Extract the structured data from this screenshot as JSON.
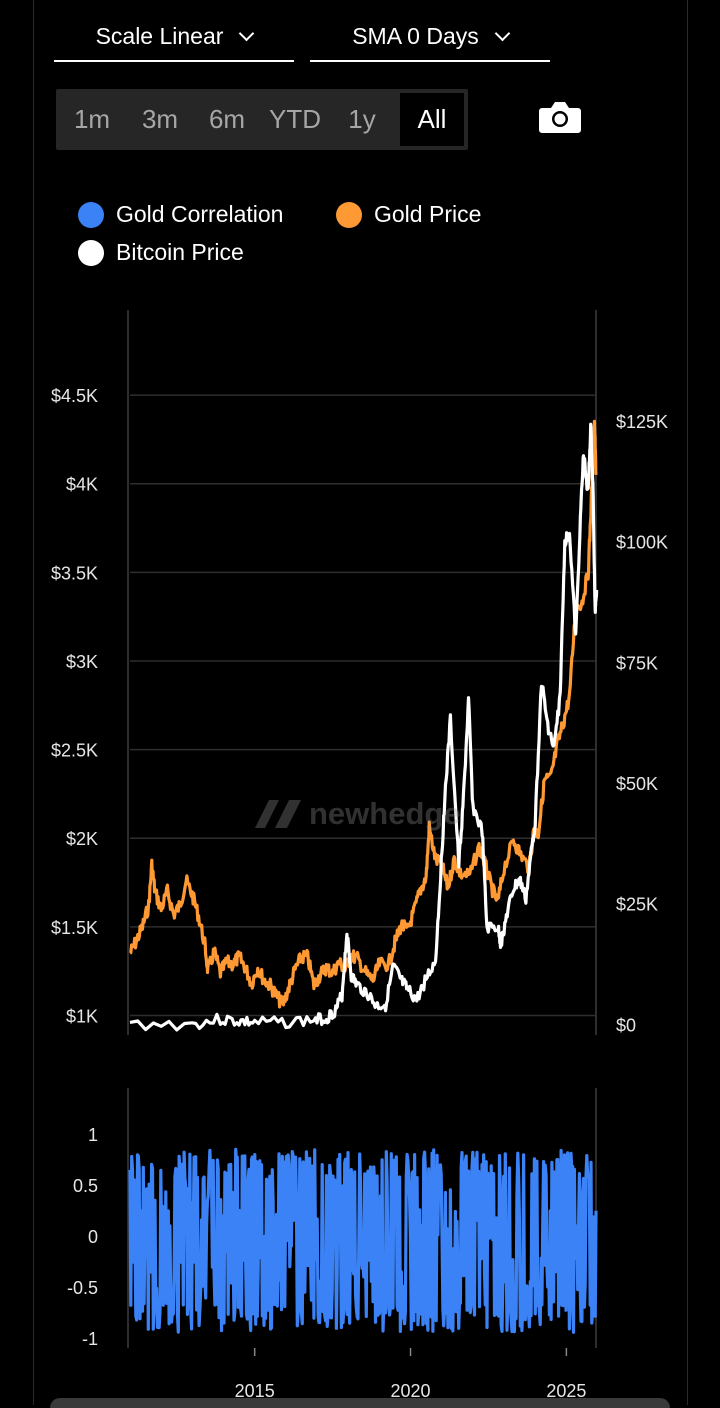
{
  "controls": {
    "scale": "Scale Linear",
    "sma": "SMA 0 Days",
    "ranges": [
      "1m",
      "3m",
      "6m",
      "YTD",
      "1y",
      "All"
    ],
    "active_range": "All"
  },
  "watermark": "newhedge",
  "colors": {
    "gold": "#ff9933",
    "bitcoin": "#ffffff",
    "correlation": "#3b82f6",
    "grid": "#2e2e2e"
  },
  "chart_data": [
    {
      "type": "line",
      "series": [
        {
          "name": "Gold Price",
          "axis": "left",
          "color": "#ff9933",
          "points": [
            [
              2011.0,
              1350
            ],
            [
              2011.2,
              1420
            ],
            [
              2011.4,
              1500
            ],
            [
              2011.6,
              1620
            ],
            [
              2011.7,
              1850
            ],
            [
              2011.8,
              1700
            ],
            [
              2012.0,
              1600
            ],
            [
              2012.2,
              1700
            ],
            [
              2012.4,
              1570
            ],
            [
              2012.6,
              1620
            ],
            [
              2012.8,
              1760
            ],
            [
              2013.0,
              1680
            ],
            [
              2013.2,
              1560
            ],
            [
              2013.4,
              1400
            ],
            [
              2013.5,
              1250
            ],
            [
              2013.7,
              1360
            ],
            [
              2013.9,
              1240
            ],
            [
              2014.1,
              1300
            ],
            [
              2014.3,
              1290
            ],
            [
              2014.5,
              1330
            ],
            [
              2014.7,
              1270
            ],
            [
              2014.9,
              1180
            ],
            [
              2015.1,
              1270
            ],
            [
              2015.3,
              1200
            ],
            [
              2015.5,
              1170
            ],
            [
              2015.7,
              1110
            ],
            [
              2015.9,
              1060
            ],
            [
              2016.1,
              1160
            ],
            [
              2016.3,
              1260
            ],
            [
              2016.5,
              1330
            ],
            [
              2016.7,
              1330
            ],
            [
              2016.9,
              1170
            ],
            [
              2017.1,
              1230
            ],
            [
              2017.3,
              1270
            ],
            [
              2017.5,
              1240
            ],
            [
              2017.7,
              1300
            ],
            [
              2017.9,
              1260
            ],
            [
              2018.1,
              1340
            ],
            [
              2018.3,
              1320
            ],
            [
              2018.6,
              1230
            ],
            [
              2018.8,
              1200
            ],
            [
              2019.0,
              1290
            ],
            [
              2019.3,
              1290
            ],
            [
              2019.5,
              1410
            ],
            [
              2019.7,
              1510
            ],
            [
              2019.9,
              1480
            ],
            [
              2020.1,
              1580
            ],
            [
              2020.3,
              1700
            ],
            [
              2020.5,
              1780
            ],
            [
              2020.6,
              2060
            ],
            [
              2020.8,
              1880
            ],
            [
              2021.0,
              1850
            ],
            [
              2021.2,
              1720
            ],
            [
              2021.4,
              1880
            ],
            [
              2021.6,
              1800
            ],
            [
              2021.9,
              1790
            ],
            [
              2022.2,
              1950
            ],
            [
              2022.4,
              1850
            ],
            [
              2022.6,
              1720
            ],
            [
              2022.8,
              1640
            ],
            [
              2023.0,
              1830
            ],
            [
              2023.3,
              1990
            ],
            [
              2023.5,
              1920
            ],
            [
              2023.8,
              1830
            ],
            [
              2023.95,
              2040
            ],
            [
              2024.1,
              2030
            ],
            [
              2024.3,
              2330
            ],
            [
              2024.5,
              2340
            ],
            [
              2024.7,
              2520
            ],
            [
              2024.9,
              2650
            ],
            [
              2025.1,
              2800
            ],
            [
              2025.3,
              3300
            ],
            [
              2025.5,
              3330
            ],
            [
              2025.7,
              3500
            ],
            [
              2025.8,
              3900
            ],
            [
              2025.9,
              4350
            ],
            [
              2025.95,
              4050
            ]
          ]
        },
        {
          "name": "Bitcoin Price",
          "axis": "right",
          "color": "#ffffff",
          "points": [
            [
              2011.0,
              0
            ],
            [
              2013.0,
              10
            ],
            [
              2013.9,
              1000
            ],
            [
              2014.5,
              600
            ],
            [
              2015.0,
              300
            ],
            [
              2016.0,
              420
            ],
            [
              2016.9,
              900
            ],
            [
              2017.3,
              1200
            ],
            [
              2017.6,
              3000
            ],
            [
              2017.8,
              6000
            ],
            [
              2017.96,
              19000
            ],
            [
              2018.1,
              10000
            ],
            [
              2018.3,
              8000
            ],
            [
              2018.6,
              6500
            ],
            [
              2018.9,
              3800
            ],
            [
              2019.2,
              4000
            ],
            [
              2019.45,
              12000
            ],
            [
              2019.7,
              9000
            ],
            [
              2019.9,
              7200
            ],
            [
              2020.2,
              5000
            ],
            [
              2020.5,
              9500
            ],
            [
              2020.8,
              13000
            ],
            [
              2020.95,
              29000
            ],
            [
              2021.1,
              47000
            ],
            [
              2021.28,
              63000
            ],
            [
              2021.55,
              33000
            ],
            [
              2021.7,
              47000
            ],
            [
              2021.86,
              67000
            ],
            [
              2022.0,
              45000
            ],
            [
              2022.3,
              40000
            ],
            [
              2022.45,
              20000
            ],
            [
              2022.8,
              20000
            ],
            [
              2022.9,
              16500
            ],
            [
              2023.1,
              23000
            ],
            [
              2023.3,
              28000
            ],
            [
              2023.5,
              30000
            ],
            [
              2023.7,
              26000
            ],
            [
              2023.9,
              37000
            ],
            [
              2024.0,
              42000
            ],
            [
              2024.2,
              71000
            ],
            [
              2024.4,
              62000
            ],
            [
              2024.6,
              57000
            ],
            [
              2024.8,
              68000
            ],
            [
              2024.95,
              100000
            ],
            [
              2025.1,
              102000
            ],
            [
              2025.3,
              80000
            ],
            [
              2025.45,
              105000
            ],
            [
              2025.55,
              118000
            ],
            [
              2025.7,
              110000
            ],
            [
              2025.78,
              124000
            ],
            [
              2025.85,
              112000
            ],
            [
              2025.92,
              86000
            ],
            [
              2025.97,
              90000
            ]
          ]
        }
      ],
      "y_left_ticks": [
        "$1K",
        "$1.5K",
        "$2K",
        "$2.5K",
        "$3K",
        "$3.5K",
        "$4K",
        "$4.5K"
      ],
      "y_left_range": [
        890,
        4980
      ],
      "y_right_ticks": [
        "$0",
        "$25K",
        "$50K",
        "$75K",
        "$100K",
        "$125K"
      ],
      "y_right_range": [
        -2200,
        148000
      ],
      "xlim": [
        2011.0,
        2025.95
      ],
      "grid": true
    },
    {
      "type": "line",
      "series": [
        {
          "name": "Gold Correlation",
          "color": "#3b82f6",
          "values_note": "",
          "x_range": [
            2011.0,
            2025.95
          ]
        }
      ],
      "y_ticks": [
        "1",
        "0.5",
        "0",
        "-0.5",
        "-1"
      ],
      "ylim": [
        -1.1,
        1.45
      ],
      "x_ticks": [
        "2015",
        "2020",
        "2025"
      ],
      "xlim": [
        2011.0,
        2025.95
      ]
    }
  ]
}
